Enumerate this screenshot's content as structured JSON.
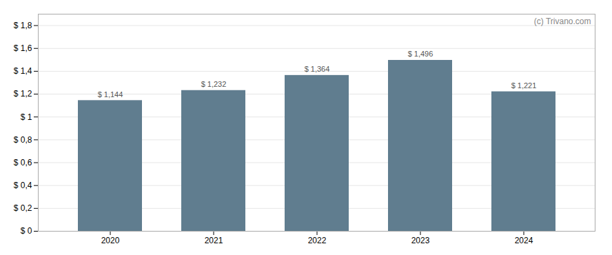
{
  "chart_data": {
    "type": "bar",
    "categories": [
      "2020",
      "2021",
      "2022",
      "2023",
      "2024"
    ],
    "values": [
      1.144,
      1.232,
      1.364,
      1.496,
      1.221
    ],
    "value_labels": [
      "$ 1,144",
      "$ 1,232",
      "$ 1,364",
      "$ 1,496",
      "$ 1,221"
    ],
    "data_labels": true,
    "color": "#607d8f",
    "ylim": [
      0,
      1.9
    ],
    "yticks": [
      {
        "value": 0,
        "label": "$ 0"
      },
      {
        "value": 0.2,
        "label": "$ 0,2"
      },
      {
        "value": 0.4,
        "label": "$ 0,4"
      },
      {
        "value": 0.6,
        "label": "$ 0,6"
      },
      {
        "value": 0.8,
        "label": "$ 0,8"
      },
      {
        "value": 1.0,
        "label": "$ 1"
      },
      {
        "value": 1.2,
        "label": "$ 1,2"
      },
      {
        "value": 1.4,
        "label": "$ 1,4"
      },
      {
        "value": 1.6,
        "label": "$ 1,6"
      },
      {
        "value": 1.8,
        "label": "$ 1,8"
      }
    ],
    "grid": true,
    "annotations": [
      {
        "text": "(c) Trivano.com"
      }
    ]
  }
}
